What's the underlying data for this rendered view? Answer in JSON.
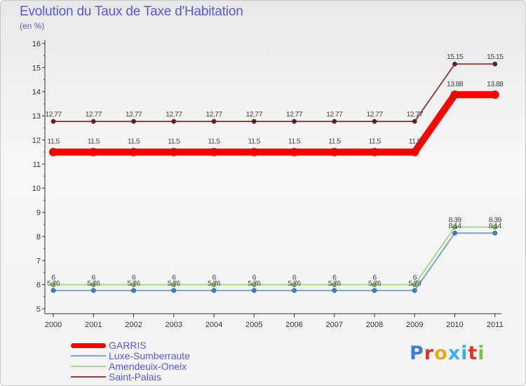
{
  "title": "Evolution du Taux de Taxe d'Habitation",
  "unit": "(en %)",
  "logo": {
    "text": "Proxiti",
    "colors": [
      "#3a7fd0",
      "#e8302a",
      "#e8a81a",
      "#3ab0e0",
      "#3ab0e0",
      "#e8302a",
      "#7cc242"
    ]
  },
  "chart_data": {
    "type": "line",
    "title": "Evolution du Taux de Taxe d'Habitation",
    "ylabel": "(en %)",
    "xlabel": "",
    "ylim": [
      5,
      16
    ],
    "yticks": [
      "5",
      "6",
      "7",
      "8",
      "9",
      "10",
      "11",
      "12",
      "13",
      "14",
      "15",
      "16"
    ],
    "categories": [
      "2000",
      "2001",
      "2002",
      "2003",
      "2004",
      "2005",
      "2006",
      "2007",
      "2008",
      "2009",
      "2010",
      "2011"
    ],
    "series": [
      {
        "name": "Saint-Palais",
        "color": "#8b4545",
        "marker": "#6a1a1a",
        "values": [
          12.77,
          12.77,
          12.77,
          12.77,
          12.77,
          12.77,
          12.77,
          12.77,
          12.77,
          12.77,
          15.15,
          15.15
        ],
        "labels": [
          "12.77",
          "12.77",
          "12.77",
          "12.77",
          "12.77",
          "12.77",
          "12.77",
          "12.77",
          "12.77",
          "12.77",
          "15.15",
          "15.15"
        ]
      },
      {
        "name": "Amendeuix-Oneix",
        "color": "#a9d98a",
        "marker": "#7cc242",
        "values": [
          6,
          6,
          6,
          6,
          6,
          6,
          6,
          6,
          6,
          6,
          8.39,
          8.39
        ],
        "labels": [
          "6",
          "6",
          "6",
          "6",
          "6",
          "6",
          "6",
          "6",
          "6",
          "6",
          "8.39",
          "8.39"
        ]
      },
      {
        "name": "Luxe-Sumberraute",
        "color": "#7fa6cf",
        "marker": "#3a7fd0",
        "values": [
          5.76,
          5.76,
          5.76,
          5.76,
          5.76,
          5.76,
          5.76,
          5.76,
          5.76,
          5.76,
          8.14,
          8.14
        ],
        "labels": [
          "5.76",
          "5.76",
          "5.76",
          "5.76",
          "5.76",
          "5.76",
          "5.76",
          "5.76",
          "5.76",
          "5.76",
          "8.14",
          "8.14"
        ]
      },
      {
        "name": "GARRIS",
        "color": "#ff0000",
        "marker": "#ee0000",
        "values": [
          11.5,
          11.5,
          11.5,
          11.5,
          11.5,
          11.5,
          11.5,
          11.5,
          11.5,
          11.5,
          13.88,
          13.88
        ],
        "labels": [
          "11.5",
          "11.5",
          "11.5",
          "11.5",
          "11.5",
          "11.5",
          "11.5",
          "11.5",
          "11.5",
          "11.5",
          "13.88",
          "13.88"
        ]
      }
    ],
    "legend": [
      {
        "name": "GARRIS",
        "color": "#ff0000"
      },
      {
        "name": "Luxe-Sumberraute",
        "color": "#7fa6cf"
      },
      {
        "name": "Amendeuix-Oneix",
        "color": "#a9d98a"
      },
      {
        "name": "Saint-Palais",
        "color": "#8b4545"
      }
    ],
    "legend_position": "bottom-left",
    "grid": false
  }
}
